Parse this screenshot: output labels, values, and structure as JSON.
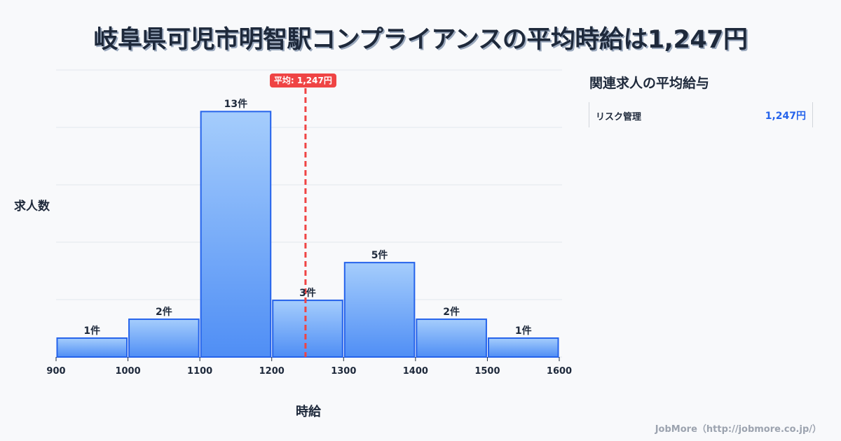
{
  "title": "岐阜県可児市明智駅コンプライアンスの平均時給は1,247円",
  "chart_data": {
    "type": "bar",
    "subtype": "histogram",
    "title": "岐阜県可児市明智駅コンプライアンスの平均時給は1,247円",
    "xlabel": "時給",
    "ylabel": "求人数",
    "bin_edges": [
      900,
      1000,
      1100,
      1200,
      1300,
      1400,
      1500,
      1600
    ],
    "categories": [
      "900-1000",
      "1000-1100",
      "1100-1200",
      "1200-1300",
      "1300-1400",
      "1400-1500",
      "1500-1600"
    ],
    "values": [
      1,
      2,
      13,
      3,
      5,
      2,
      1
    ],
    "bar_labels": [
      "1件",
      "2件",
      "13件",
      "3件",
      "5件",
      "2件",
      "1件"
    ],
    "x_ticks": [
      "900",
      "1000",
      "1100",
      "1200",
      "1300",
      "1400",
      "1500",
      "1600"
    ],
    "xlim": [
      900,
      1600
    ],
    "ylim": [
      0,
      15.2
    ],
    "grid": true,
    "average_line": {
      "value": 1247,
      "label": "平均: 1,247円",
      "color": "#ef4444"
    },
    "bar_color": "#60a5fa",
    "bar_border_color": "#2563eb"
  },
  "sidebar": {
    "title": "関連求人の平均給与",
    "items": [
      {
        "label": "リスク管理",
        "value": "1,247円"
      }
    ]
  },
  "footer": "JobMore（http://jobmore.co.jp/）"
}
